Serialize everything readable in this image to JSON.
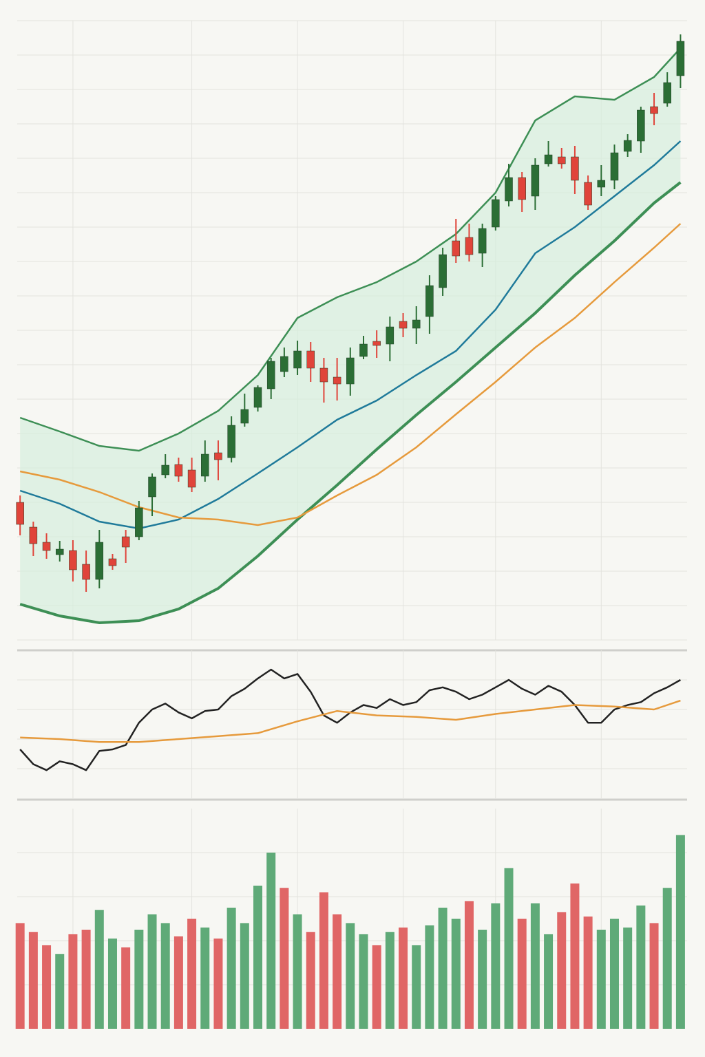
{
  "chart_data": [
    {
      "type": "candlestick",
      "open": [
        200,
        164,
        142,
        124,
        130,
        110,
        88,
        118,
        150,
        150,
        208,
        240,
        255,
        247,
        238,
        272,
        265,
        315,
        338,
        365,
        390,
        395,
        420,
        395,
        382,
        372,
        412,
        434,
        430,
        463,
        453,
        470,
        512,
        580,
        585,
        562,
        600,
        638,
        672,
        645,
        692,
        702,
        702,
        665,
        658,
        668,
        710,
        725,
        775,
        780,
        820
      ],
      "high": [
        210,
        172,
        155,
        144,
        145,
        130,
        160,
        125,
        160,
        202,
        242,
        270,
        265,
        265,
        290,
        290,
        325,
        358,
        370,
        410,
        425,
        435,
        433,
        410,
        410,
        425,
        442,
        450,
        470,
        475,
        485,
        530,
        570,
        612,
        605,
        605,
        645,
        692,
        680,
        700,
        725,
        715,
        718,
        675,
        690,
        720,
        735,
        775,
        795,
        825,
        880
      ],
      "low": [
        152,
        122,
        118,
        114,
        85,
        70,
        75,
        102,
        112,
        145,
        180,
        235,
        230,
        215,
        230,
        232,
        258,
        310,
        332,
        350,
        382,
        385,
        375,
        345,
        348,
        355,
        408,
        410,
        405,
        440,
        430,
        445,
        500,
        548,
        550,
        542,
        595,
        630,
        622,
        625,
        688,
        685,
        648,
        625,
        645,
        655,
        702,
        708,
        748,
        775,
        802
      ],
      "close": [
        168,
        140,
        130,
        132,
        102,
        88,
        142,
        108,
        135,
        192,
        237,
        254,
        238,
        222,
        270,
        262,
        312,
        335,
        367,
        405,
        412,
        420,
        395,
        375,
        372,
        410,
        430,
        428,
        455,
        453,
        465,
        515,
        560,
        558,
        560,
        598,
        640,
        672,
        640,
        690,
        705,
        692,
        668,
        632,
        668,
        708,
        726,
        770,
        765,
        810,
        870
      ],
      "up_color": "#2b6e35",
      "down_color": "#e0443a",
      "overlays": [
        {
          "x": [
            0,
            3,
            6,
            9,
            12,
            15,
            18,
            21,
            24,
            27,
            30,
            33,
            36,
            39,
            42,
            45,
            48,
            50
          ],
          "values": [
            323,
            303,
            282,
            275,
            300,
            333,
            385,
            468,
            498,
            520,
            550,
            590,
            650,
            755,
            790,
            785,
            818,
            860
          ],
          "color": "#3d8f55"
        },
        {
          "x": [
            0,
            3,
            6,
            9,
            12,
            15,
            18,
            21,
            24,
            27,
            30,
            33,
            36,
            39,
            42,
            45,
            48,
            50
          ],
          "values": [
            52,
            35,
            25,
            28,
            45,
            75,
            122,
            175,
            225,
            277,
            327,
            375,
            425,
            475,
            530,
            580,
            635,
            665
          ],
          "color": "#3d8f55"
        },
        {
          "x": [
            0,
            3,
            6,
            9,
            12,
            15,
            18,
            21,
            24,
            27,
            30,
            33,
            36,
            39,
            42,
            45,
            48,
            50
          ],
          "values": [
            217,
            198,
            172,
            162,
            175,
            205,
            242,
            280,
            320,
            348,
            385,
            420,
            480,
            562,
            600,
            645,
            690,
            725
          ],
          "color": "#1f7a9a"
        },
        {
          "x": [
            0,
            3,
            6,
            9,
            12,
            15,
            18,
            21,
            24,
            27,
            30,
            33,
            36,
            39,
            42,
            45,
            48,
            50
          ],
          "values": [
            245,
            233,
            215,
            193,
            178,
            175,
            167,
            178,
            210,
            240,
            280,
            328,
            375,
            425,
            468,
            520,
            570,
            605
          ],
          "color": "#e69a3c"
        }
      ],
      "band_color": "#d6eedd",
      "xlim": [
        -1,
        50.5
      ],
      "xticks": [
        4,
        13,
        21,
        29,
        36,
        44
      ],
      "ylim": [
        0,
        900
      ],
      "yticks": [
        0,
        50,
        100,
        150,
        200,
        250,
        300,
        350,
        400,
        450,
        500,
        550,
        600,
        650,
        700,
        750,
        800,
        850,
        900
      ],
      "grid": true
    },
    {
      "type": "line",
      "series": [
        {
          "x": [
            0,
            1,
            2,
            3,
            4,
            5,
            6,
            7,
            8,
            9,
            10,
            11,
            12,
            13,
            14,
            15,
            16,
            17,
            18,
            19,
            20,
            21,
            22,
            23,
            24,
            25,
            26,
            27,
            28,
            29,
            30,
            31,
            32,
            33,
            34,
            35,
            36,
            37,
            38,
            39,
            40,
            41,
            42,
            43,
            44,
            45,
            46,
            47,
            48,
            49,
            50
          ],
          "values": [
            33,
            23,
            19,
            25,
            23,
            19,
            32,
            33,
            36,
            51,
            60,
            64,
            58,
            54,
            59,
            60,
            69,
            74,
            81,
            87,
            81,
            84,
            72,
            56,
            51,
            58,
            63,
            61,
            67,
            63,
            65,
            73,
            75,
            72,
            67,
            70,
            75,
            80,
            74,
            70,
            76,
            72,
            63,
            51,
            51,
            60,
            63,
            65,
            71,
            75,
            80
          ],
          "color": "#222222"
        },
        {
          "x": [
            0,
            3,
            6,
            9,
            12,
            15,
            18,
            21,
            24,
            27,
            30,
            33,
            36,
            39,
            42,
            45,
            48,
            50
          ],
          "values": [
            41,
            40,
            38,
            38,
            40,
            42,
            44,
            52,
            59,
            56,
            55,
            53,
            57,
            60,
            63,
            62,
            60,
            66
          ],
          "color": "#e69a3c"
        }
      ],
      "xlim": [
        -1,
        50.5
      ],
      "xticks": [
        4,
        13,
        21,
        29,
        36,
        44
      ],
      "ylim": [
        0,
        100
      ],
      "yticks": [
        20,
        40,
        60,
        80
      ],
      "grid": true
    },
    {
      "type": "bar",
      "values": [
        48,
        44,
        38,
        34,
        43,
        45,
        54,
        41,
        37,
        45,
        52,
        48,
        42,
        50,
        46,
        41,
        55,
        48,
        65,
        80,
        64,
        52,
        44,
        62,
        52,
        48,
        43,
        38,
        44,
        46,
        38,
        47,
        55,
        50,
        58,
        45,
        57,
        73,
        50,
        57,
        43,
        53,
        66,
        51,
        45,
        50,
        46,
        56,
        48,
        64,
        88
      ],
      "colors": [
        "#e06666",
        "#e06666",
        "#e06666",
        "#5faa78",
        "#e06666",
        "#e06666",
        "#5faa78",
        "#5faa78",
        "#e06666",
        "#5faa78",
        "#5faa78",
        "#5faa78",
        "#e06666",
        "#e06666",
        "#5faa78",
        "#e06666",
        "#5faa78",
        "#5faa78",
        "#5faa78",
        "#5faa78",
        "#e06666",
        "#5faa78",
        "#e06666",
        "#e06666",
        "#e06666",
        "#5faa78",
        "#5faa78",
        "#e06666",
        "#5faa78",
        "#e06666",
        "#5faa78",
        "#5faa78",
        "#5faa78",
        "#5faa78",
        "#e06666",
        "#5faa78",
        "#5faa78",
        "#5faa78",
        "#e06666",
        "#5faa78",
        "#5faa78",
        "#e06666",
        "#e06666",
        "#e06666",
        "#5faa78",
        "#5faa78",
        "#5faa78",
        "#5faa78",
        "#e06666",
        "#5faa78",
        "#5faa78"
      ],
      "xlim": [
        -1,
        50.5
      ],
      "xticks": [
        4,
        13,
        21,
        29,
        36,
        44
      ],
      "ylim": [
        0,
        100
      ],
      "yticks": [
        20,
        40,
        60,
        80
      ],
      "grid": true
    }
  ]
}
